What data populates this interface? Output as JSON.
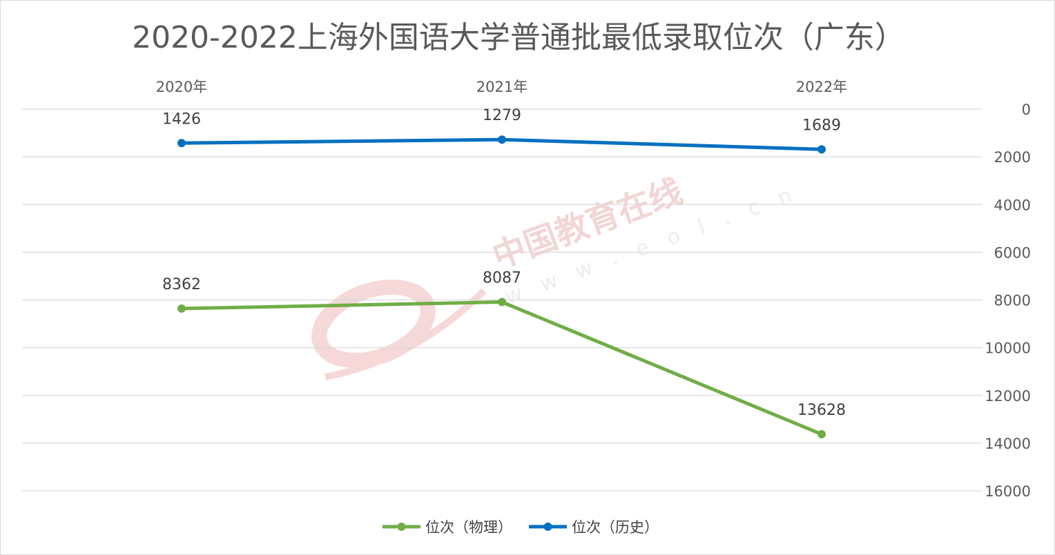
{
  "watermark": {
    "text": "中国教育在线",
    "url": "w w w . e o l . c n"
  },
  "chart_data": {
    "type": "line",
    "title": "2020-2022上海外国语大学普通批最低录取位次（广东）",
    "categories": [
      "2020年",
      "2021年",
      "2022年"
    ],
    "ylim": [
      0,
      16000
    ],
    "yaxis_reversed": true,
    "yaxis_position": "right",
    "xaxis_position": "top",
    "yticks": [
      "0",
      "2000",
      "4000",
      "6000",
      "8000",
      "10000",
      "12000",
      "14000",
      "16000"
    ],
    "grid": true,
    "legend_position": "bottom",
    "series": [
      {
        "name": "位次（物理）",
        "values": [
          8362,
          8087,
          13628
        ],
        "labels": [
          "8362",
          "8087",
          "13628"
        ],
        "color": "#70ad47"
      },
      {
        "name": "位次（历史）",
        "values": [
          1426,
          1279,
          1689
        ],
        "labels": [
          "1426",
          "1279",
          "1689"
        ],
        "color": "#0070c0"
      }
    ]
  }
}
